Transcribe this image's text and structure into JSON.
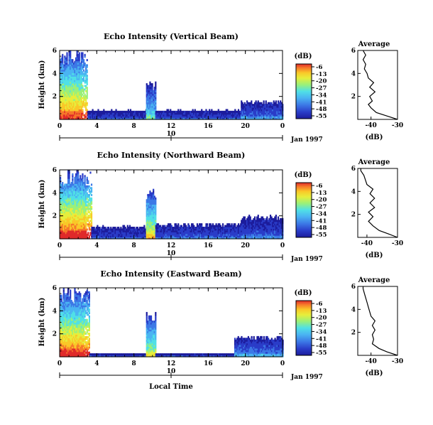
{
  "figure": {
    "x_label_bottom": "Local Time",
    "date_label": "Jan 1997",
    "date_tick": "10",
    "avg_title": "Average",
    "avg_xlabel": "(dB)",
    "colorbar_unit": "(dB)"
  },
  "colors": {
    "scale": [
      "#1c1c9c",
      "#2a3cc8",
      "#3c78e6",
      "#4ab4f2",
      "#50e0e6",
      "#9af07a",
      "#e6ee3c",
      "#fac828",
      "#f6782a",
      "#e02a2a"
    ]
  },
  "chart_data": [
    {
      "type": "heatmap",
      "title": "Echo Intensity (Vertical Beam)",
      "ylabel": "Height (km)",
      "x_ticks": [
        "0",
        "4",
        "8",
        "12",
        "16",
        "20",
        "0"
      ],
      "y_ticks": [
        "2",
        "4",
        "6"
      ],
      "xlim": [
        0,
        24
      ],
      "ylim": [
        0,
        6
      ],
      "colorbar": {
        "label": "(dB)",
        "ticks": [
          "-6",
          "-13",
          "-20",
          "-27",
          "-34",
          "-41",
          "-48",
          "-55"
        ]
      },
      "regions": [
        {
          "x0": 0,
          "x1": 3,
          "top": 6,
          "peak": -10
        },
        {
          "x0": 3,
          "x1": 9.3,
          "top": 0.8,
          "peak": -45
        },
        {
          "x0": 9.3,
          "x1": 10.3,
          "top": 3.3,
          "peak": -30
        },
        {
          "x0": 10.3,
          "x1": 19.5,
          "top": 0.8,
          "peak": -44
        },
        {
          "x0": 19.5,
          "x1": 24,
          "top": 1.6,
          "peak": -40
        }
      ],
      "average": {
        "xlim": [
          -45,
          -30
        ],
        "x_ticks": [
          "-40",
          "-30"
        ],
        "y_ticks": [
          "2",
          "4",
          "6"
        ],
        "profile": [
          [
            0,
            -30
          ],
          [
            0.3,
            -34
          ],
          [
            0.6,
            -38
          ],
          [
            1.0,
            -40
          ],
          [
            1.3,
            -41
          ],
          [
            1.6,
            -39.5
          ],
          [
            2.0,
            -40.5
          ],
          [
            2.4,
            -38.5
          ],
          [
            2.8,
            -40.5
          ],
          [
            3.2,
            -39
          ],
          [
            3.6,
            -41
          ],
          [
            4.0,
            -41.5
          ],
          [
            4.4,
            -42.5
          ],
          [
            4.8,
            -42
          ],
          [
            5.2,
            -43
          ],
          [
            5.6,
            -42
          ],
          [
            6.0,
            -43
          ]
        ]
      }
    },
    {
      "type": "heatmap",
      "title": "Echo Intensity (Northward Beam)",
      "ylabel": "Height (km)",
      "x_ticks": [
        "0",
        "4",
        "8",
        "12",
        "16",
        "20",
        "0"
      ],
      "y_ticks": [
        "2",
        "4",
        "6"
      ],
      "xlim": [
        0,
        24
      ],
      "ylim": [
        0,
        6
      ],
      "colorbar": {
        "label": "(dB)",
        "ticks": [
          "-6",
          "-13",
          "-20",
          "-27",
          "-34",
          "-41",
          "-48",
          "-55"
        ]
      },
      "regions": [
        {
          "x0": 0,
          "x1": 3.4,
          "top": 6,
          "peak": -6
        },
        {
          "x0": 3.4,
          "x1": 9.3,
          "top": 1.1,
          "peak": -44
        },
        {
          "x0": 9.3,
          "x1": 10.3,
          "top": 4.4,
          "peak": -18
        },
        {
          "x0": 10.3,
          "x1": 19.5,
          "top": 1.3,
          "peak": -42
        },
        {
          "x0": 19.5,
          "x1": 24,
          "top": 2.0,
          "peak": -42
        }
      ],
      "average": {
        "xlim": [
          -43,
          -30
        ],
        "x_ticks": [
          "-40",
          "-30"
        ],
        "y_ticks": [
          "2",
          "4",
          "6"
        ],
        "profile": [
          [
            0,
            -30
          ],
          [
            0.3,
            -33
          ],
          [
            0.6,
            -36
          ],
          [
            1.0,
            -38
          ],
          [
            1.4,
            -39.5
          ],
          [
            1.8,
            -38
          ],
          [
            2.2,
            -39.5
          ],
          [
            2.6,
            -37.5
          ],
          [
            3.0,
            -39
          ],
          [
            3.4,
            -37.5
          ],
          [
            3.8,
            -39
          ],
          [
            4.2,
            -38
          ],
          [
            4.6,
            -40
          ],
          [
            5.0,
            -40.5
          ],
          [
            5.4,
            -41
          ],
          [
            5.8,
            -42
          ],
          [
            6.0,
            -42
          ]
        ]
      }
    },
    {
      "type": "heatmap",
      "title": "Echo Intensity (Eastward Beam)",
      "ylabel": "Height (km)",
      "x_ticks": [
        "0",
        "4",
        "8",
        "12",
        "16",
        "20",
        "0"
      ],
      "y_ticks": [
        "2",
        "4",
        "6"
      ],
      "xlim": [
        0,
        24
      ],
      "ylim": [
        0,
        6
      ],
      "colorbar": {
        "label": "(dB)",
        "ticks": [
          "-6",
          "-13",
          "-20",
          "-27",
          "-34",
          "-41",
          "-48",
          "-55"
        ]
      },
      "regions": [
        {
          "x0": 0,
          "x1": 3.2,
          "top": 6,
          "peak": -8
        },
        {
          "x0": 3.2,
          "x1": 9.3,
          "top": 0.3,
          "peak": -48
        },
        {
          "x0": 9.3,
          "x1": 10.3,
          "top": 4.0,
          "peak": -22
        },
        {
          "x0": 10.3,
          "x1": 18.8,
          "top": 0.3,
          "peak": -48
        },
        {
          "x0": 18.8,
          "x1": 24,
          "top": 1.8,
          "peak": -38
        }
      ],
      "average": {
        "xlim": [
          -45,
          -30
        ],
        "x_ticks": [
          "-40",
          "-30"
        ],
        "y_ticks": [
          "2",
          "4",
          "6"
        ],
        "profile": [
          [
            0,
            -30
          ],
          [
            0.3,
            -34
          ],
          [
            0.6,
            -37
          ],
          [
            1.0,
            -39.5
          ],
          [
            1.4,
            -39
          ],
          [
            1.8,
            -39.5
          ],
          [
            2.2,
            -38.5
          ],
          [
            2.6,
            -39.5
          ],
          [
            3.0,
            -38.5
          ],
          [
            3.4,
            -40
          ],
          [
            3.8,
            -40.5
          ],
          [
            4.2,
            -41
          ],
          [
            4.6,
            -41.5
          ],
          [
            5.0,
            -42
          ],
          [
            5.4,
            -42.5
          ],
          [
            5.8,
            -43
          ],
          [
            6.0,
            -43
          ]
        ]
      }
    }
  ]
}
